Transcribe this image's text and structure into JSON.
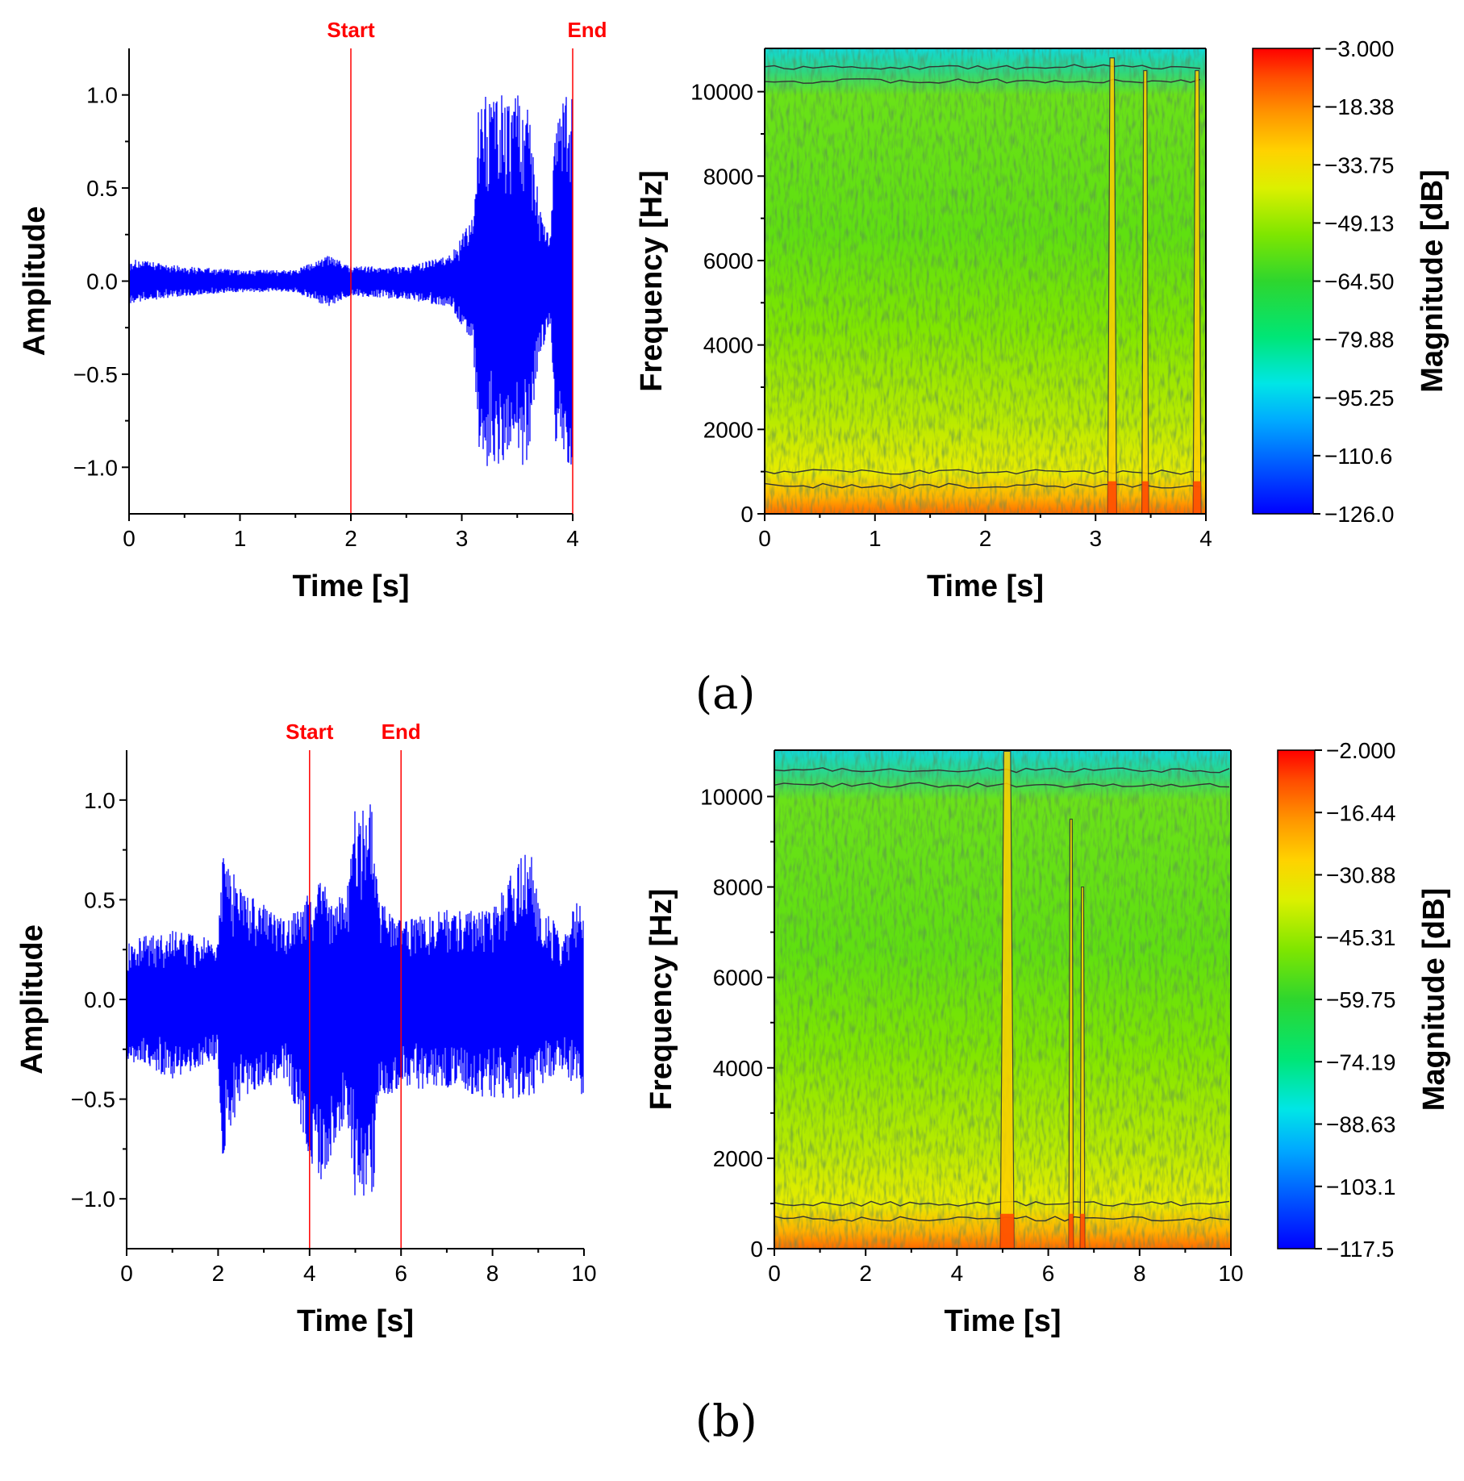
{
  "panel_labels": {
    "a": "(a)",
    "b": "(b)"
  },
  "colors": {
    "signal": "#0000ff",
    "marker": "#ff0000",
    "axis": "#000000",
    "contour": "#333333",
    "colormap": [
      "#0000ff",
      "#0055ff",
      "#00aaff",
      "#00e6e6",
      "#00e676",
      "#2ed62e",
      "#7fe600",
      "#dcf000",
      "#ffd200",
      "#ff9600",
      "#ff4b00",
      "#ff0000"
    ]
  },
  "chart_data": [
    {
      "id": "a-waveform",
      "type": "line",
      "xlabel": "Time [s]",
      "ylabel": "Amplitude",
      "xlim": [
        0,
        4
      ],
      "ylim": [
        -1.25,
        1.25
      ],
      "xticks": [
        0,
        1,
        2,
        3,
        4
      ],
      "yticks": [
        -1.0,
        -0.5,
        0.0,
        0.5,
        1.0
      ],
      "ytick_labels": [
        "−1.0",
        "−0.5",
        "0.0",
        "0.5",
        "1.0"
      ],
      "markers": [
        {
          "label": "Start",
          "x": 2
        },
        {
          "label": "End",
          "x": 4
        }
      ],
      "envelope": {
        "t": [
          0,
          0.5,
          1.0,
          1.5,
          1.8,
          2.0,
          2.5,
          2.9,
          3.1,
          3.15,
          3.2,
          3.4,
          3.5,
          3.6,
          3.7,
          3.8,
          3.85,
          3.95,
          4.0
        ],
        "upper": [
          0.12,
          0.08,
          0.06,
          0.06,
          0.14,
          0.08,
          0.08,
          0.14,
          0.35,
          1.0,
          1.0,
          1.0,
          1.0,
          1.0,
          0.4,
          0.25,
          1.0,
          1.0,
          1.0
        ],
        "lower": [
          -0.12,
          -0.08,
          -0.06,
          -0.06,
          -0.14,
          -0.08,
          -0.1,
          -0.14,
          -0.35,
          -1.0,
          -1.0,
          -1.0,
          -1.0,
          -1.0,
          -0.4,
          -0.25,
          -1.0,
          -1.0,
          -1.0
        ]
      }
    },
    {
      "id": "a-spectrogram",
      "type": "heatmap",
      "xlabel": "Time [s]",
      "ylabel": "Frequency [Hz]",
      "xlim": [
        0,
        4
      ],
      "ylim": [
        0,
        11025
      ],
      "xticks": [
        0,
        1,
        2,
        3,
        4
      ],
      "yticks": [
        0,
        2000,
        4000,
        6000,
        8000,
        10000
      ],
      "colorbar": {
        "label": "Magnitude [dB]",
        "range": [
          -126.0,
          -3.0
        ],
        "tick_labels": [
          "−3.000",
          "−18.38",
          "−33.75",
          "−49.13",
          "−64.50",
          "−79.88",
          "−95.25",
          "−110.6",
          "−126.0"
        ]
      },
      "bursts": [
        {
          "t": 3.15,
          "width": 0.08,
          "top_hz": 10800
        },
        {
          "t": 3.45,
          "width": 0.06,
          "top_hz": 10500
        },
        {
          "t": 3.92,
          "width": 0.07,
          "top_hz": 10500
        }
      ]
    },
    {
      "id": "b-waveform",
      "type": "line",
      "xlabel": "Time [s]",
      "ylabel": "Amplitude",
      "xlim": [
        0,
        10
      ],
      "ylim": [
        -1.25,
        1.25
      ],
      "xticks": [
        0,
        2,
        4,
        6,
        8,
        10
      ],
      "yticks": [
        -1.0,
        -0.5,
        0.0,
        0.5,
        1.0
      ],
      "ytick_labels": [
        "−1.0",
        "−0.5",
        "0.0",
        "0.5",
        "1.0"
      ],
      "markers": [
        {
          "label": "Start",
          "x": 4
        },
        {
          "label": "End",
          "x": 6
        }
      ],
      "envelope": {
        "t": [
          0,
          1,
          2.0,
          2.1,
          2.5,
          3.5,
          4.2,
          4.8,
          5.0,
          5.1,
          5.4,
          5.5,
          6.0,
          7.0,
          8.0,
          8.8,
          9.0,
          9.5,
          10.0
        ],
        "upper": [
          0.3,
          0.35,
          0.3,
          0.75,
          0.55,
          0.4,
          0.6,
          0.5,
          1.0,
          1.0,
          1.0,
          0.5,
          0.4,
          0.45,
          0.45,
          0.8,
          0.5,
          0.35,
          0.55
        ],
        "lower": [
          -0.3,
          -0.4,
          -0.3,
          -0.8,
          -0.5,
          -0.4,
          -0.95,
          -0.6,
          -1.0,
          -1.0,
          -1.0,
          -0.5,
          -0.45,
          -0.45,
          -0.5,
          -0.5,
          -0.45,
          -0.35,
          -0.5
        ]
      }
    },
    {
      "id": "b-spectrogram",
      "type": "heatmap",
      "xlabel": "Time [s]",
      "ylabel": "Frequency [Hz]",
      "xlim": [
        0,
        10
      ],
      "ylim": [
        0,
        11025
      ],
      "xticks": [
        0,
        2,
        4,
        6,
        8,
        10
      ],
      "yticks": [
        0,
        2000,
        4000,
        6000,
        8000,
        10000
      ],
      "colorbar": {
        "label": "Magnitude [dB]",
        "range": [
          -117.5,
          -2.0
        ],
        "tick_labels": [
          "−2.000",
          "−16.44",
          "−30.88",
          "−45.31",
          "−59.75",
          "−74.19",
          "−88.63",
          "−103.1",
          "−117.5"
        ]
      },
      "bursts": [
        {
          "t": 5.1,
          "width": 0.3,
          "top_hz": 11000
        },
        {
          "t": 6.5,
          "width": 0.1,
          "top_hz": 9500
        },
        {
          "t": 6.75,
          "width": 0.1,
          "top_hz": 8000
        }
      ]
    }
  ]
}
